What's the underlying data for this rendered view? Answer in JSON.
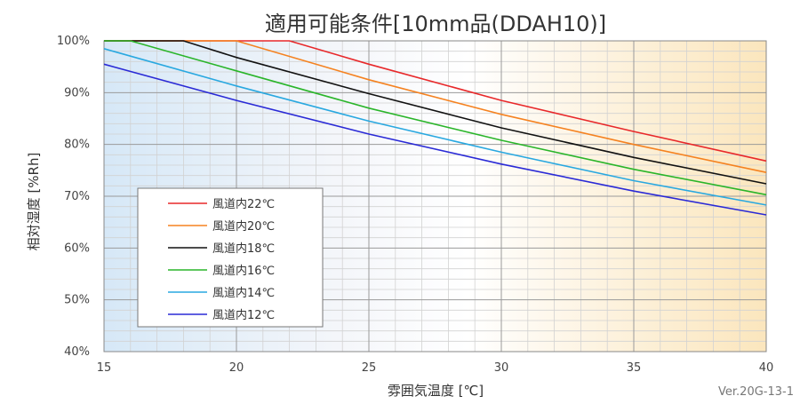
{
  "chart_data": {
    "type": "line",
    "title": "適用可能条件[10mm品(DDAH10)]",
    "xlabel": "雰囲気温度 [℃]",
    "ylabel": "相対湿度 [%Rh]",
    "xlim": [
      15,
      40
    ],
    "ylim": [
      40,
      100
    ],
    "x_ticks": [
      "15",
      "20",
      "25",
      "30",
      "35",
      "40"
    ],
    "y_ticks": [
      "40%",
      "50%",
      "60%",
      "70%",
      "80%",
      "90%",
      "100%"
    ],
    "grid": true,
    "legend_position": "bottom-left",
    "series": [
      {
        "name": "風道内22℃",
        "color": "#e8282a",
        "points": [
          [
            15,
            100
          ],
          [
            22,
            100
          ],
          [
            25,
            95.5
          ],
          [
            30,
            88.5
          ],
          [
            35,
            82.5
          ],
          [
            40,
            76.8
          ]
        ]
      },
      {
        "name": "風道内20℃",
        "color": "#f58220",
        "points": [
          [
            15,
            100
          ],
          [
            20,
            100
          ],
          [
            25,
            92.5
          ],
          [
            30,
            85.8
          ],
          [
            35,
            80.0
          ],
          [
            40,
            74.6
          ]
        ]
      },
      {
        "name": "風道内18℃",
        "color": "#111111",
        "points": [
          [
            15,
            100
          ],
          [
            18,
            100
          ],
          [
            20,
            96.8
          ],
          [
            25,
            89.8
          ],
          [
            30,
            83.2
          ],
          [
            35,
            77.5
          ],
          [
            40,
            72.4
          ]
        ]
      },
      {
        "name": "風道内16℃",
        "color": "#2ab52a",
        "points": [
          [
            15,
            100
          ],
          [
            16,
            100
          ],
          [
            20,
            94.2
          ],
          [
            25,
            87.0
          ],
          [
            30,
            80.8
          ],
          [
            35,
            75.2
          ],
          [
            40,
            70.3
          ]
        ]
      },
      {
        "name": "風道内14℃",
        "color": "#29a8e0",
        "points": [
          [
            15,
            98.5
          ],
          [
            20,
            91.3
          ],
          [
            25,
            84.5
          ],
          [
            30,
            78.5
          ],
          [
            35,
            73.0
          ],
          [
            40,
            68.3
          ]
        ]
      },
      {
        "name": "風道内12℃",
        "color": "#2a2ad6",
        "points": [
          [
            15,
            95.5
          ],
          [
            20,
            88.5
          ],
          [
            25,
            82.0
          ],
          [
            30,
            76.2
          ],
          [
            35,
            71.0
          ],
          [
            40,
            66.4
          ]
        ]
      }
    ]
  },
  "footer": {
    "version": "Ver.20G-13-1"
  }
}
